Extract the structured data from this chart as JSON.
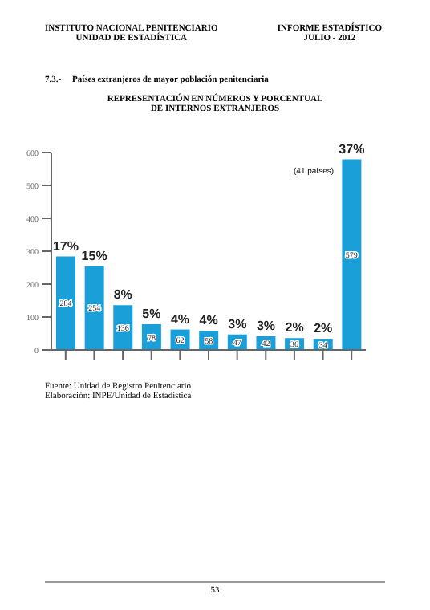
{
  "chart_data": {
    "type": "bar",
    "title": "REPRESENTACIÓN EN NÚMEROS Y PORCENTUAL\nDE INTERNOS EXTRANJEROS",
    "subtitle": "7.3.-     Países extranjeros de mayor población penitenciaria",
    "categories": [
      null,
      null,
      null,
      null,
      null,
      null,
      null,
      null,
      null,
      null,
      null
    ],
    "values": [
      284,
      254,
      136,
      78,
      62,
      58,
      47,
      42,
      36,
      34,
      579
    ],
    "color": "#1a9fd8",
    "ylim": [
      0,
      600
    ],
    "yticks": [
      0,
      100,
      200,
      300,
      400,
      500,
      600
    ],
    "grid": false,
    "data_labels": true,
    "annotations": [
      {
        "text": "17%",
        "y": 284
      },
      {
        "text": "15%",
        "y": 254
      },
      {
        "text": "8%",
        "y": 136
      },
      {
        "text": "5%",
        "y": 78
      },
      {
        "text": "4%",
        "y": 62
      },
      {
        "text": "4%",
        "y": 58
      },
      {
        "text": "3%",
        "y": 47
      },
      {
        "text": "3%",
        "y": 42
      },
      {
        "text": "2%",
        "y": 36
      },
      {
        "text": "2%",
        "y": 34
      },
      {
        "text": "37%",
        "y": 579
      },
      "(41 países)",
      "INSTITUTO NACIONAL PENITENCIARIO\nUNIDAD DE ESTADÍSTICA",
      "INFORME ESTADÍSTICO\nJULIO - 2012",
      "Fuente: Unidad de Registro Penitenciario\nElaboración: INPE/Unidad de Estadística",
      "53"
    ]
  }
}
